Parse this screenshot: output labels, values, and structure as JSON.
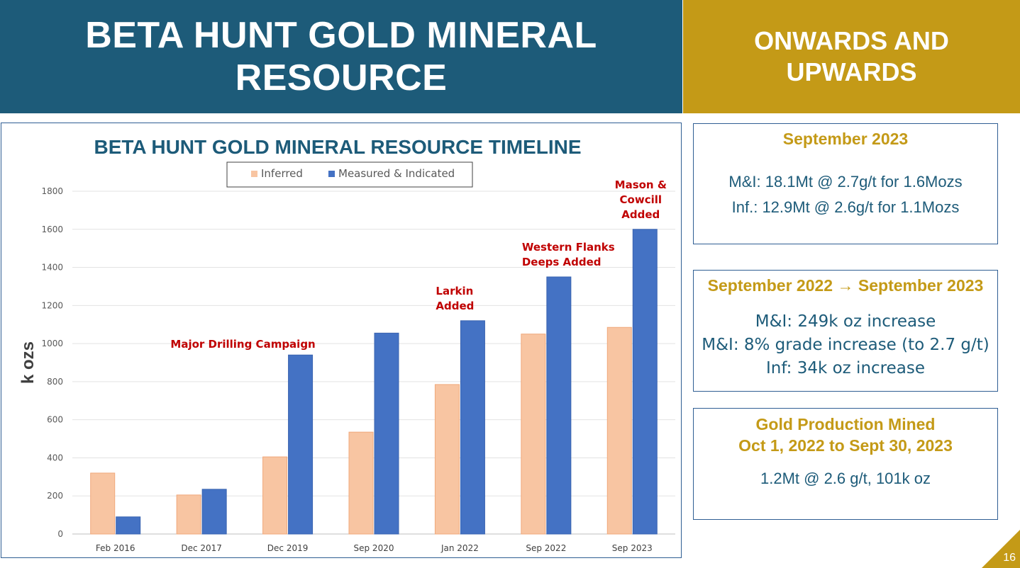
{
  "header": {
    "title": "BETA HUNT GOLD MINERAL RESOURCE",
    "tagline": "ONWARDS AND UPWARDS"
  },
  "colors": {
    "header_blue": "#1d5b79",
    "gold": "#c49a17",
    "inferred": "#f8c5a2",
    "measured_indicated": "#4472c4",
    "annotation_red": "#c00000"
  },
  "chart_data": {
    "type": "bar",
    "title": "BETA HUNT GOLD MINERAL RESOURCE TIMELINE",
    "ylabel": "k ozs",
    "xlabel": "",
    "ylim": [
      0,
      1800
    ],
    "yticks": [
      0,
      200,
      400,
      600,
      800,
      1000,
      1200,
      1400,
      1600,
      1800
    ],
    "grid": true,
    "legend_position": "top-center",
    "categories": [
      "Feb 2016",
      "Dec 2017",
      "Dec 2019",
      "Sep 2020",
      "Jan 2022",
      "Sep 2022",
      "Sep 2023"
    ],
    "series": [
      {
        "name": "Inferred",
        "values": [
          320,
          205,
          405,
          535,
          785,
          1050,
          1085
        ]
      },
      {
        "name": "Measured & Indicated",
        "values": [
          90,
          235,
          940,
          1055,
          1120,
          1350,
          1600
        ]
      }
    ],
    "annotations": [
      {
        "category": "Dec 2019",
        "lines": [
          "Major Drilling Campaign"
        ]
      },
      {
        "category": "Jan 2022",
        "lines": [
          "Larkin",
          "Added"
        ]
      },
      {
        "category": "Sep 2022",
        "lines": [
          "Western Flanks",
          "Deeps Added"
        ]
      },
      {
        "category": "Sep 2023",
        "lines": [
          "Mason &",
          "Cowcill",
          "Added"
        ]
      }
    ]
  },
  "panels": {
    "current": {
      "title": "September 2023",
      "line1": "M&I: 18.1Mt @ 2.7g/t for 1.6Mozs",
      "line2": "Inf.: 12.9Mt @ 2.6g/t for 1.1Mozs"
    },
    "change": {
      "title": "September 2022 → September 2023",
      "line1": "M&I: 249k oz increase",
      "line2": "M&I: 8% grade increase (to 2.7 g/t)",
      "line3": "Inf: 34k oz increase"
    },
    "production": {
      "title_line1": "Gold Production Mined",
      "title_line2": "Oct 1, 2022 to Sept 30, 2023",
      "line1": "1.2Mt @ 2.6 g/t, 101k oz"
    }
  },
  "page_number": "16"
}
